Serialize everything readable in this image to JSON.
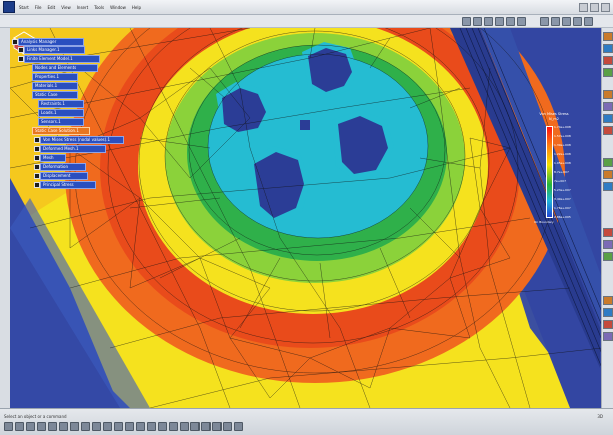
{
  "menubar": {
    "items": [
      "Start",
      "File",
      "Edit",
      "View",
      "Insert",
      "Tools",
      "Window",
      "Help"
    ]
  },
  "spec_tree": {
    "nodes": [
      "Analysis Manager",
      "Links Manager.1",
      "Finite Element Model.1",
      "Nodes and Elements",
      "Properties.1",
      "Materials.1",
      "Static Case",
      "Restraints.1",
      "Loads.1",
      "Sensors.1",
      "Static Case Solution.1",
      "Von Mises Stress (nodal values).1",
      "Deformed Mesh.1",
      "Mesh",
      "Deformation",
      "Displacement",
      "Principal Stress"
    ]
  },
  "legend": {
    "title": "Von Mises Stress",
    "subtitle": "N_m2",
    "ticks": [
      "1.74e+008",
      "1.57e+008",
      "1.39e+008",
      "1.22e+008",
      "1.05e+008",
      "8.7e+007",
      "7e+007",
      "5.23e+007",
      "3.49e+007",
      "1.76e+007",
      "2.86e+005"
    ],
    "footer": "On Boundary"
  },
  "statusbar": {
    "left_text": "Select an object or a command",
    "right_text": "3D"
  },
  "colors": {
    "viewport_bg": "#3b4fa0",
    "hot": "#e53a1c",
    "warm": "#f06a1e",
    "mid": "#f5e21e",
    "cool": "#2fb04a",
    "cold": "#2aa7d9",
    "deep": "#2b3d96"
  }
}
